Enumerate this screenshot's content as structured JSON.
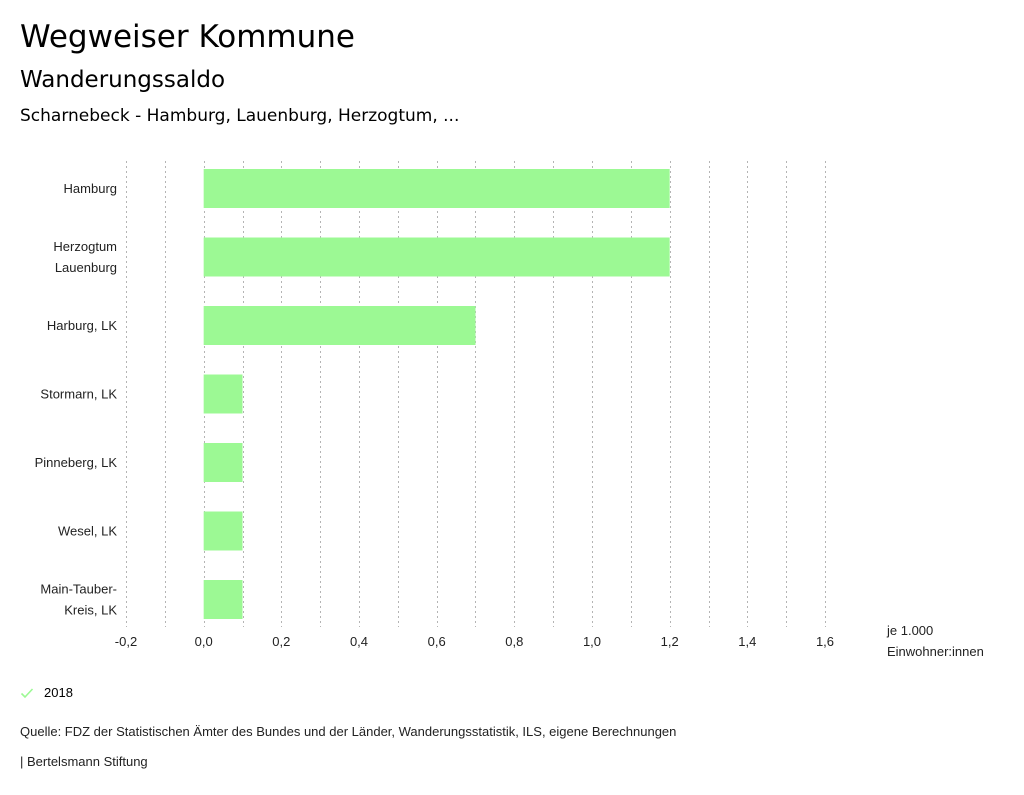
{
  "header": {
    "title": "Wegweiser Kommune",
    "subtitle": "Wanderungssaldo",
    "context": "Scharnebeck - Hamburg, Lauenburg, Herzogtum, ..."
  },
  "colors": {
    "bar": "#9cf994",
    "grid": "#b4b4b4",
    "legend_check": "#9cf994"
  },
  "chart_data": {
    "type": "bar",
    "orientation": "horizontal",
    "title": "Wanderungssaldo",
    "categories": [
      [
        "Hamburg"
      ],
      [
        "Herzogtum",
        "Lauenburg"
      ],
      [
        "Harburg, LK"
      ],
      [
        "Stormarn, LK"
      ],
      [
        "Pinneberg, LK"
      ],
      [
        "Wesel, LK"
      ],
      [
        "Main-Tauber-",
        "Kreis, LK"
      ]
    ],
    "series": [
      {
        "name": "2018",
        "values": [
          1.2,
          1.2,
          0.7,
          0.1,
          0.1,
          0.1,
          0.1
        ]
      }
    ],
    "xlim": [
      -0.2,
      1.6
    ],
    "xticks": [
      -0.2,
      0.0,
      0.2,
      0.4,
      0.6,
      0.8,
      1.0,
      1.2,
      1.4,
      1.6
    ],
    "xtick_labels": [
      "-0,2",
      "0,0",
      "0,2",
      "0,4",
      "0,6",
      "0,8",
      "1,0",
      "1,2",
      "1,4",
      "1,6"
    ],
    "grid_step": 0.1,
    "grid": true,
    "xlabel": [
      "je 1.000",
      "Einwohner:innen"
    ],
    "ylabel": "",
    "legend_position": "bottom-left"
  },
  "legend": {
    "items": [
      {
        "label": "2018",
        "icon": "check-icon"
      }
    ]
  },
  "footer": {
    "source": "Quelle: FDZ der Statistischen Ämter des Bundes und der Länder, Wanderungsstatistik, ILS, eigene Berechnungen",
    "brand": "| Bertelsmann Stiftung"
  }
}
